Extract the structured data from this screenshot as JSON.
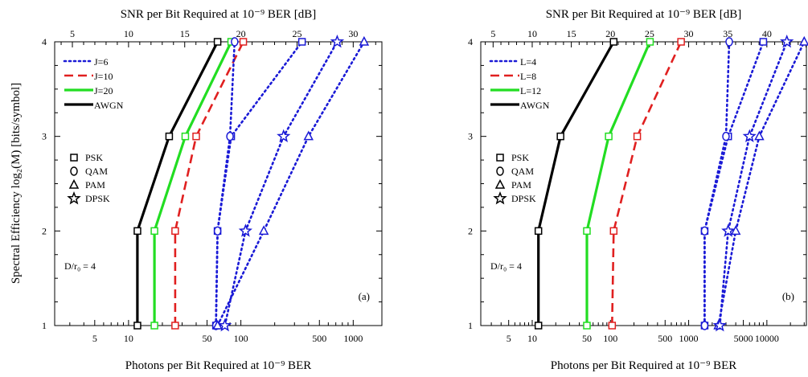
{
  "figure": {
    "ylabel": "Spectral Efficiency log₂(M)  [bits/symbol]"
  },
  "chart_data": [
    {
      "type": "line",
      "panel_label": "(a)",
      "title_top": "SNR per Bit Required at 10⁻⁹ BER [dB]",
      "xlabel": "Photons per Bit Required at 10⁻⁹ BER",
      "ylabel": "Spectral Efficiency log₂(M)  [bits/symbol]",
      "x_scale": "log",
      "xlim": [
        2.2,
        1800
      ],
      "ylim": [
        1,
        4
      ],
      "y_ticks": [
        1,
        2,
        3,
        4
      ],
      "x_ticks_bottom": [
        5,
        10,
        50,
        100,
        500,
        1000
      ],
      "x_ticks_top_dB": [
        5,
        10,
        15,
        20,
        25,
        30
      ],
      "annotation": "D/r₀ = 4",
      "legend_placement": "top-left",
      "legend_lines": [
        {
          "label": "J=6",
          "style": "dotted",
          "color": "#1a1ad6"
        },
        {
          "label": "J=10",
          "style": "dashed",
          "color": "#e02020"
        },
        {
          "label": "J=20",
          "style": "solid",
          "color": "#22dd22"
        },
        {
          "label": "AWGN",
          "style": "solid",
          "color": "#000000"
        }
      ],
      "legend_markers": [
        {
          "label": "PSK",
          "marker": "square"
        },
        {
          "label": "QAM",
          "marker": "circle"
        },
        {
          "label": "PAM",
          "marker": "triangle"
        },
        {
          "label": "DPSK",
          "marker": "star"
        }
      ],
      "series": [
        {
          "name": "AWGN",
          "modulation": "PSK",
          "style": "solid",
          "color": "#000000",
          "marker": "square",
          "points": [
            [
              12,
              1
            ],
            [
              12,
              2
            ],
            [
              23,
              3
            ],
            [
              62,
              4
            ]
          ]
        },
        {
          "name": "J=20",
          "modulation": "PSK",
          "style": "solid",
          "color": "#22dd22",
          "marker": "square",
          "points": [
            [
              17,
              1
            ],
            [
              17,
              2
            ],
            [
              32,
              3
            ],
            [
              82,
              4
            ]
          ]
        },
        {
          "name": "J=10",
          "modulation": "PSK",
          "style": "dashed",
          "color": "#e02020",
          "marker": "square",
          "points": [
            [
              26,
              1
            ],
            [
              26,
              2
            ],
            [
              40,
              3
            ],
            [
              105,
              4
            ]
          ]
        },
        {
          "name": "J=6",
          "modulation": "PSK",
          "style": "dotted",
          "color": "#1a1ad6",
          "marker": "square",
          "points": [
            [
              60,
              1
            ],
            [
              62,
              2
            ],
            [
              82,
              3
            ],
            [
              350,
              4
            ]
          ]
        },
        {
          "name": "J=6",
          "modulation": "QAM",
          "style": "dotted",
          "color": "#1a1ad6",
          "marker": "circle",
          "points": [
            [
              60,
              1
            ],
            [
              62,
              2
            ],
            [
              80,
              3
            ],
            [
              88,
              4
            ]
          ]
        },
        {
          "name": "J=6",
          "modulation": "PAM",
          "style": "dotted",
          "color": "#1a1ad6",
          "marker": "triangle",
          "points": [
            [
              62,
              1
            ],
            [
              160,
              2
            ],
            [
              400,
              3
            ],
            [
              1250,
              4
            ]
          ]
        },
        {
          "name": "J=6",
          "modulation": "DPSK",
          "style": "dotted",
          "color": "#1a1ad6",
          "marker": "star",
          "points": [
            [
              72,
              1
            ],
            [
              110,
              2
            ],
            [
              240,
              3
            ],
            [
              720,
              4
            ]
          ]
        }
      ]
    },
    {
      "type": "line",
      "panel_label": "(b)",
      "title_top": "SNR per Bit Required at 10⁻⁹ BER [dB]",
      "xlabel": "Photons per Bit Required at 10⁻⁹ BER",
      "ylabel": "",
      "x_scale": "log",
      "xlim": [
        2.2,
        32000
      ],
      "ylim": [
        1,
        4
      ],
      "y_ticks": [
        1,
        2,
        3,
        4
      ],
      "x_ticks_bottom": [
        5,
        10,
        50,
        100,
        500,
        1000,
        5000,
        10000
      ],
      "x_ticks_top_dB": [
        5,
        10,
        15,
        20,
        25,
        30,
        35,
        40
      ],
      "annotation": "D/r₀ = 4",
      "legend_placement": "top-left",
      "legend_lines": [
        {
          "label": "L=4",
          "style": "dotted",
          "color": "#1a1ad6"
        },
        {
          "label": "L=8",
          "style": "dashed",
          "color": "#e02020"
        },
        {
          "label": "L=12",
          "style": "solid",
          "color": "#22dd22"
        },
        {
          "label": "AWGN",
          "style": "solid",
          "color": "#000000"
        }
      ],
      "legend_markers": [
        {
          "label": "PSK",
          "marker": "square"
        },
        {
          "label": "QAM",
          "marker": "circle"
        },
        {
          "label": "PAM",
          "marker": "triangle"
        },
        {
          "label": "DPSK",
          "marker": "star"
        }
      ],
      "series": [
        {
          "name": "AWGN",
          "modulation": "PSK",
          "style": "solid",
          "color": "#000000",
          "marker": "square",
          "points": [
            [
              12,
              1
            ],
            [
              12,
              2
            ],
            [
              23,
              3
            ],
            [
              110,
              4
            ]
          ]
        },
        {
          "name": "L=12",
          "modulation": "PSK",
          "style": "solid",
          "color": "#22dd22",
          "marker": "square",
          "points": [
            [
              50,
              1
            ],
            [
              50,
              2
            ],
            [
              95,
              3
            ],
            [
              320,
              4
            ]
          ]
        },
        {
          "name": "L=8",
          "modulation": "PSK",
          "style": "dashed",
          "color": "#e02020",
          "marker": "square",
          "points": [
            [
              105,
              1
            ],
            [
              110,
              2
            ],
            [
              220,
              3
            ],
            [
              800,
              4
            ]
          ]
        },
        {
          "name": "L=4",
          "modulation": "PSK",
          "style": "dotted",
          "color": "#1a1ad6",
          "marker": "square",
          "points": [
            [
              1600,
              1
            ],
            [
              1600,
              2
            ],
            [
              3200,
              3
            ],
            [
              9000,
              4
            ]
          ]
        },
        {
          "name": "L=4",
          "modulation": "QAM",
          "style": "dotted",
          "color": "#1a1ad6",
          "marker": "circle",
          "points": [
            [
              1600,
              1
            ],
            [
              1600,
              2
            ],
            [
              3000,
              3
            ],
            [
              3300,
              4
            ]
          ]
        },
        {
          "name": "L=4",
          "modulation": "PAM",
          "style": "dotted",
          "color": "#1a1ad6",
          "marker": "triangle",
          "points": [
            [
              2400,
              1
            ],
            [
              4000,
              2
            ],
            [
              8000,
              3
            ],
            [
              30000,
              4
            ]
          ]
        },
        {
          "name": "L=4",
          "modulation": "DPSK",
          "style": "dotted",
          "color": "#1a1ad6",
          "marker": "star",
          "points": [
            [
              2500,
              1
            ],
            [
              3200,
              2
            ],
            [
              6000,
              3
            ],
            [
              18000,
              4
            ]
          ]
        }
      ]
    }
  ]
}
